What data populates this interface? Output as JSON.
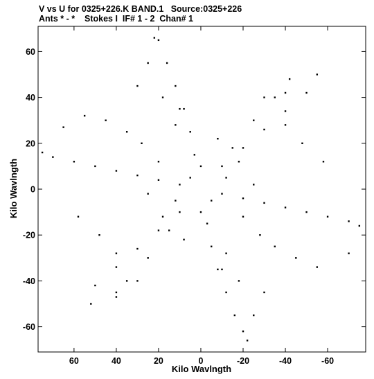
{
  "header": {
    "line1": "V vs U for 0325+226.K BAND.1   Source:0325+226",
    "line2": "Ants * - *    Stokes I  IF# 1 - 2  Chan# 1"
  },
  "chart_data": {
    "type": "scatter",
    "title": "V vs U for 0325+226.K BAND.1   Source:0325+226",
    "subtitle": "Ants * - *    Stokes I  IF# 1 - 2  Chan# 1",
    "xlabel": "Kilo Wavlngth",
    "ylabel": "Kilo Wavlngth",
    "xlim": [
      77,
      -78
    ],
    "ylim": [
      -71,
      71
    ],
    "x_reversed": true,
    "xticks": [
      60,
      40,
      20,
      0,
      -20,
      -40,
      -60
    ],
    "xtick_labels": [
      "60",
      "40",
      "20",
      "0",
      "-20",
      "-40",
      "-60"
    ],
    "yticks": [
      60,
      40,
      20,
      0,
      -20,
      -40,
      -60
    ],
    "ytick_labels": [
      "60",
      "40",
      "20",
      "0",
      "-20",
      "-40",
      "-60"
    ],
    "marker_color": "#000000",
    "series": [
      {
        "points": [
          [
            10,
            2
          ],
          [
            20,
            4
          ],
          [
            30,
            6
          ],
          [
            40,
            8
          ],
          [
            50,
            10
          ],
          [
            60,
            12
          ],
          [
            70,
            14
          ],
          [
            75,
            16
          ],
          [
            -10,
            -2
          ],
          [
            -20,
            -4
          ],
          [
            -30,
            -6
          ],
          [
            -40,
            -8
          ],
          [
            -50,
            -10
          ],
          [
            -60,
            -12
          ],
          [
            -70,
            -14
          ],
          [
            -75,
            -16
          ],
          [
            3,
            15
          ],
          [
            5,
            25
          ],
          [
            8,
            35
          ],
          [
            12,
            45
          ],
          [
            16,
            55
          ],
          [
            20,
            65
          ],
          [
            22,
            66
          ],
          [
            -3,
            -15
          ],
          [
            -5,
            -25
          ],
          [
            -8,
            -35
          ],
          [
            -12,
            -45
          ],
          [
            -16,
            -55
          ],
          [
            -20,
            -62
          ],
          [
            -22,
            -66
          ],
          [
            -10,
            10
          ],
          [
            -20,
            18
          ],
          [
            -30,
            26
          ],
          [
            -40,
            34
          ],
          [
            -50,
            42
          ],
          [
            -55,
            50
          ],
          [
            10,
            -10
          ],
          [
            20,
            -18
          ],
          [
            30,
            -26
          ],
          [
            40,
            -34
          ],
          [
            50,
            -42
          ],
          [
            52,
            -50
          ],
          [
            -15,
            18
          ],
          [
            -25,
            30
          ],
          [
            -35,
            40
          ],
          [
            -42,
            48
          ],
          [
            15,
            -18
          ],
          [
            25,
            -30
          ],
          [
            35,
            -40
          ],
          [
            40,
            -47
          ],
          [
            35,
            25
          ],
          [
            45,
            30
          ],
          [
            55,
            32
          ],
          [
            65,
            27
          ],
          [
            -35,
            -25
          ],
          [
            -45,
            -30
          ],
          [
            -55,
            -34
          ],
          [
            -70,
            -28
          ],
          [
            20,
            12
          ],
          [
            28,
            20
          ],
          [
            12,
            28
          ],
          [
            -8,
            22
          ],
          [
            -18,
            12
          ],
          [
            -25,
            2
          ],
          [
            -20,
            -12
          ],
          [
            -28,
            -20
          ],
          [
            -12,
            -28
          ],
          [
            8,
            -22
          ],
          [
            18,
            -12
          ],
          [
            25,
            -2
          ],
          [
            30,
            45
          ],
          [
            25,
            55
          ],
          [
            -30,
            -45
          ],
          [
            -25,
            -55
          ],
          [
            -40,
            28
          ],
          [
            -48,
            20
          ],
          [
            -58,
            12
          ],
          [
            40,
            -28
          ],
          [
            48,
            -20
          ],
          [
            58,
            -12
          ],
          [
            30,
            -40
          ],
          [
            40,
            -45
          ],
          [
            -30,
            40
          ],
          [
            -40,
            42
          ],
          [
            10,
            35
          ],
          [
            18,
            40
          ],
          [
            -10,
            -35
          ],
          [
            -18,
            -40
          ],
          [
            5,
            5
          ],
          [
            -5,
            -5
          ],
          [
            12,
            -5
          ],
          [
            -12,
            5
          ],
          [
            0,
            10
          ],
          [
            0,
            -10
          ]
        ]
      }
    ]
  }
}
